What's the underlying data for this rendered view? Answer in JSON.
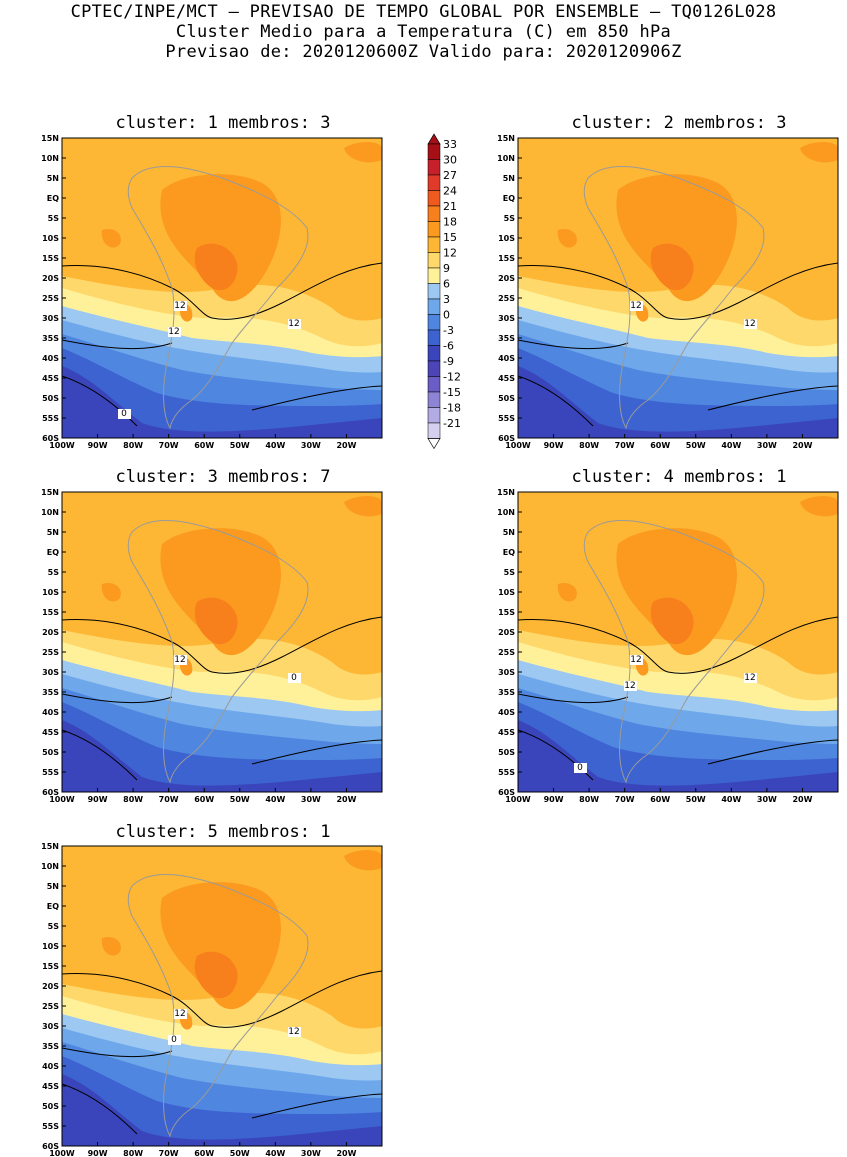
{
  "header": {
    "line1": "CPTEC/INPE/MCT – PREVISAO DE TEMPO GLOBAL POR ENSEMBLE – TQ0126L028",
    "line2": "Cluster Medio para a Temperatura (C) em 850 hPa",
    "line3": "Previsao de: 2020120600Z   Valido para: 2020120906Z"
  },
  "axes": {
    "lat_labels": [
      "15N",
      "10N",
      "5N",
      "EQ",
      "5S",
      "10S",
      "15S",
      "20S",
      "25S",
      "30S",
      "35S",
      "40S",
      "45S",
      "50S",
      "55S",
      "60S"
    ],
    "lon_labels": [
      "100W",
      "90W",
      "80W",
      "70W",
      "60W",
      "50W",
      "40W",
      "30W",
      "20W"
    ]
  },
  "colorbar": {
    "labels": [
      "33",
      "30",
      "27",
      "24",
      "21",
      "18",
      "15",
      "12",
      "9",
      "6",
      "3",
      "0",
      "-3",
      "-6",
      "-9",
      "-12",
      "-15",
      "-18",
      "-21"
    ],
    "colors": [
      "#a50f15",
      "#c8202a",
      "#e03a2a",
      "#ef5a1f",
      "#f77f1c",
      "#fb9a1e",
      "#fdb735",
      "#ffd86b",
      "#fff19a",
      "#9cc8f2",
      "#6ea7ea",
      "#4f86e0",
      "#3c63d0",
      "#3a45bc",
      "#4d44b8",
      "#6a5ec6",
      "#8e84d6",
      "#b3abe3",
      "#d5d0ef"
    ]
  },
  "panels": [
    {
      "title": "cluster: 1   membros: 3",
      "contour_labels": [
        "12",
        "12",
        "12",
        "0"
      ]
    },
    {
      "title": "cluster: 2   membros: 3",
      "contour_labels": [
        "12",
        "12"
      ]
    },
    {
      "title": "cluster: 3   membros: 7",
      "contour_labels": [
        "12",
        "0"
      ]
    },
    {
      "title": "cluster: 4   membros: 1",
      "contour_labels": [
        "12",
        "12",
        "12",
        "0"
      ]
    },
    {
      "title": "cluster: 5   membros: 1",
      "contour_labels": [
        "12",
        "12",
        "0"
      ]
    }
  ]
}
